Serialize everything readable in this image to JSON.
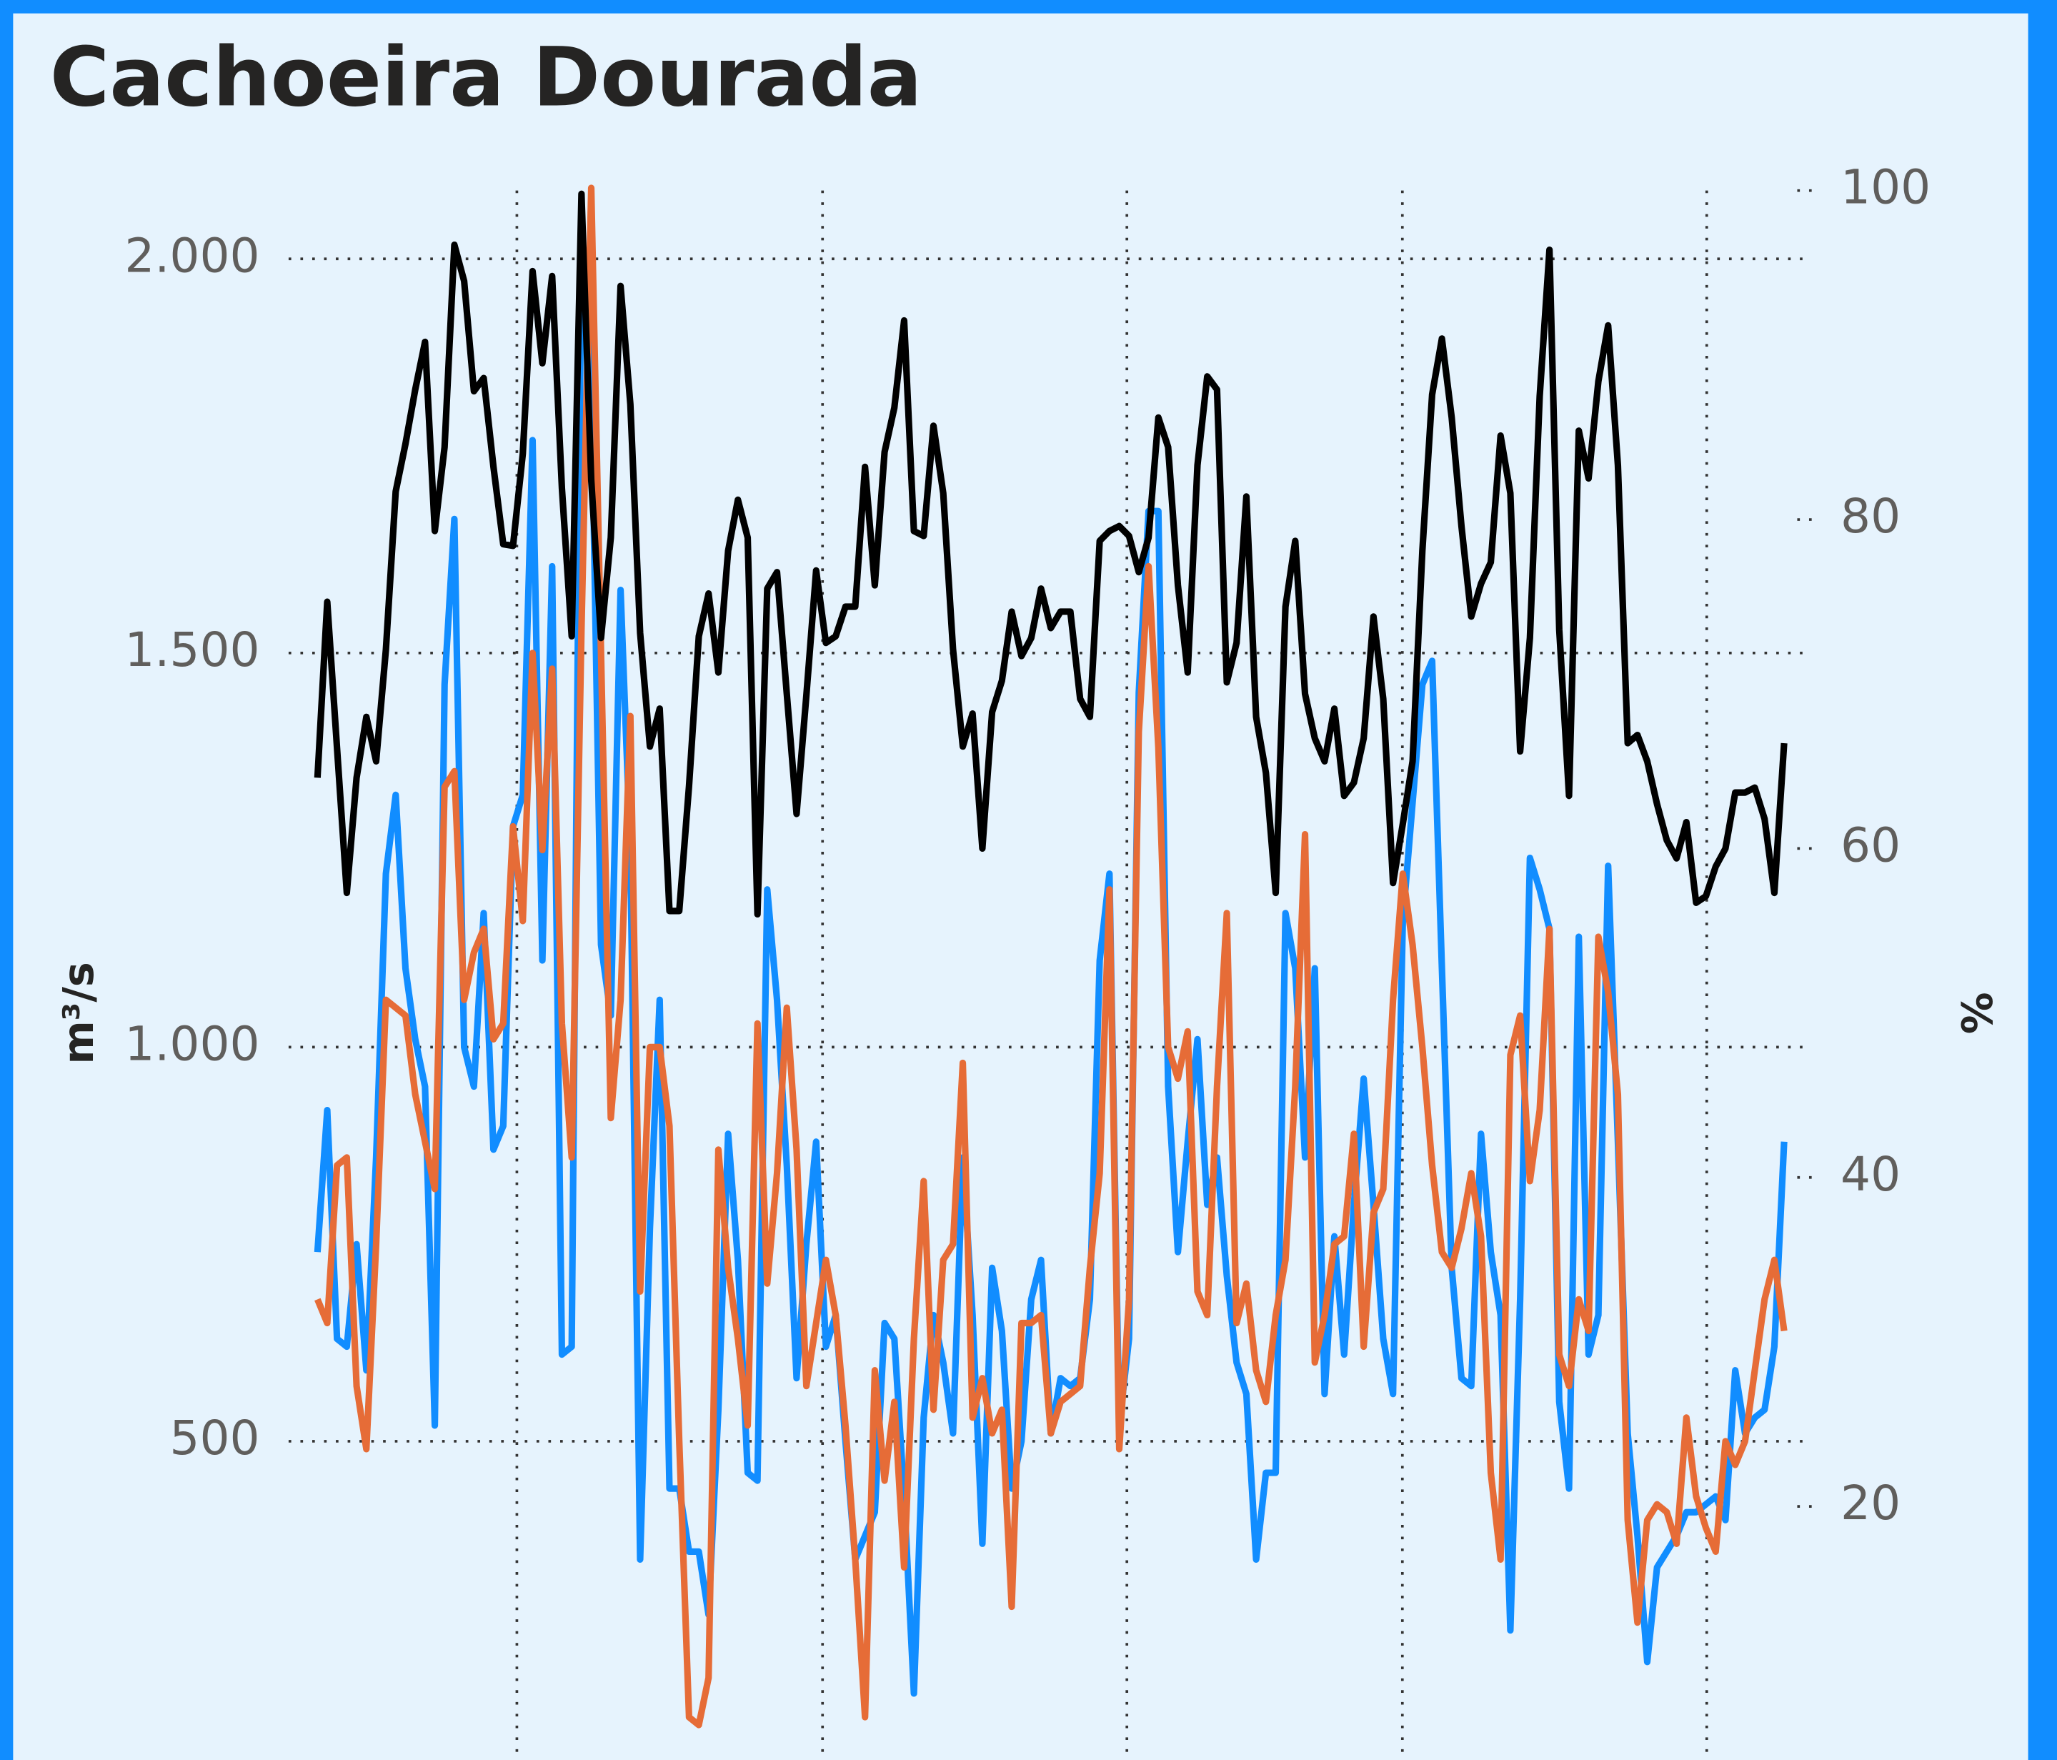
{
  "chart_data": {
    "type": "line",
    "title": "Cachoeira Dourada",
    "ylabel": "m³/s",
    "y2label": "%",
    "ylim": [
      96,
      2095
    ],
    "yticks": [
      {
        "value": 500,
        "label": "500"
      },
      {
        "value": 1000,
        "label": "1.000"
      },
      {
        "value": 1500,
        "label": "1.500"
      },
      {
        "value": 2000,
        "label": "2.000"
      }
    ],
    "y2lim": [
      4.6,
      100.4
    ],
    "y2ticks": [
      20,
      40,
      60,
      80,
      100
    ],
    "grid": true,
    "series": [
      {
        "color": "#118DFF",
        "values": [
          740,
          920,
          630,
          620,
          750,
          590,
          860,
          1220,
          1320,
          1100,
          1010,
          950,
          520,
          1460,
          1670,
          1000,
          950,
          1170,
          870,
          900,
          1280,
          1320,
          1770,
          1110,
          1610,
          610,
          620,
          2040,
          1850,
          1130,
          1040,
          1580,
          1250,
          350,
          770,
          1060,
          440,
          440,
          360,
          360,
          280,
          540,
          890,
          730,
          460,
          450,
          1200,
          1060,
          850,
          580,
          750,
          880,
          620,
          660,
          500,
          350,
          380,
          410,
          650,
          630,
          430,
          180,
          530,
          660,
          600,
          510,
          860,
          660,
          370,
          720,
          640,
          440,
          500,
          680,
          730,
          510,
          580,
          570,
          580,
          680,
          1110,
          1220,
          520,
          630,
          1450,
          1680,
          1680,
          950,
          740,
          880,
          1010,
          800,
          860,
          710,
          600,
          560,
          350,
          460,
          460,
          1170,
          1100,
          860,
          1100,
          560,
          760,
          610,
          800,
          960,
          800,
          630,
          560,
          1160,
          1310,
          1460,
          1490,
          1100,
          720,
          580,
          570,
          890,
          740,
          660,
          260,
          680,
          1240,
          1200,
          1150,
          550,
          440,
          1140,
          610,
          660,
          1230,
          880,
          510,
          380,
          220,
          340,
          360,
          380,
          410,
          410,
          420,
          430,
          400,
          590,
          510,
          530,
          540,
          620,
          880
        ]
      },
      {
        "color": "#E66C37",
        "values": [
          680,
          650,
          850,
          860,
          570,
          490,
          750,
          1060,
          1050,
          1040,
          940,
          880,
          820,
          1330,
          1350,
          1060,
          1120,
          1150,
          1010,
          1030,
          1280,
          1160,
          1500,
          1250,
          1480,
          1030,
          860,
          1530,
          2090,
          1500,
          910,
          1060,
          1420,
          690,
          1000,
          1000,
          900,
          500,
          150,
          140,
          200,
          870,
          720,
          630,
          520,
          1030,
          700,
          840,
          1050,
          870,
          570,
          650,
          730,
          660,
          520,
          350,
          150,
          590,
          450,
          550,
          340,
          630,
          830,
          540,
          730,
          750,
          980,
          530,
          580,
          510,
          540,
          290,
          650,
          650,
          660,
          510,
          550,
          560,
          570,
          720,
          840,
          1200,
          490,
          680,
          1400,
          1610,
          1380,
          1000,
          960,
          1020,
          690,
          660,
          950,
          1170,
          650,
          700,
          590,
          550,
          660,
          730,
          950,
          1270,
          600,
          660,
          750,
          760,
          890,
          620,
          790,
          820,
          1060,
          1220,
          1130,
          1000,
          850,
          740,
          720,
          770,
          840,
          760,
          460,
          350,
          990,
          1040,
          830,
          920,
          1150,
          610,
          570,
          680,
          640,
          1140,
          1070,
          940,
          400,
          270,
          400,
          420,
          410,
          370,
          530,
          430,
          390,
          360,
          500,
          470,
          500,
          590,
          680,
          730,
          640
        ]
      },
      {
        "color": "#000000",
        "axis": "y2",
        "values": [
          64.3,
          75.0,
          66.1,
          57.3,
          64.3,
          68.0,
          65.3,
          72.1,
          81.7,
          84.6,
          87.9,
          90.8,
          79.3,
          84.4,
          96.7,
          94.5,
          87.8,
          88.6,
          83.2,
          78.5,
          78.4,
          84.0,
          95.1,
          89.5,
          94.8,
          81.9,
          72.9,
          99.8,
          82.4,
          72.8,
          78.9,
          94.2,
          87.0,
          73.1,
          66.2,
          68.5,
          56.2,
          56.2,
          63.8,
          72.9,
          75.5,
          70.7,
          78.1,
          81.2,
          78.9,
          56.0,
          75.8,
          76.8,
          69.4,
          62.1,
          69.3,
          76.9,
          72.5,
          72.9,
          74.7,
          74.7,
          83.2,
          76.0,
          84.1,
          86.8,
          92.1,
          79.3,
          79.0,
          85.7,
          81.6,
          72.1,
          66.2,
          68.2,
          60.0,
          68.3,
          70.2,
          74.4,
          71.7,
          72.8,
          75.8,
          73.4,
          74.4,
          74.4,
          69.1,
          68.0,
          78.7,
          79.3,
          79.6,
          79.0,
          76.8,
          78.9,
          86.2,
          84.4,
          76.0,
          70.7,
          83.3,
          88.7,
          87.9,
          70.1,
          72.5,
          81.4,
          68.0,
          64.6,
          57.3,
          74.7,
          78.7,
          69.4,
          66.7,
          65.3,
          68.5,
          63.2,
          64.0,
          66.7,
          74.1,
          69.1,
          57.9,
          61.5,
          65.3,
          78.1,
          87.6,
          91.0,
          86.2,
          79.6,
          74.1,
          76.1,
          77.4,
          85.1,
          81.6,
          65.9,
          72.8,
          87.5,
          96.4,
          73.3,
          63.2,
          85.4,
          82.5,
          88.4,
          91.8,
          83.3,
          66.4,
          66.9,
          65.3,
          62.7,
          60.5,
          59.4,
          61.6,
          56.7,
          57.1,
          58.9,
          60.0,
          63.4,
          63.4,
          63.7,
          61.8,
          57.3,
          66.4
        ]
      }
    ]
  }
}
